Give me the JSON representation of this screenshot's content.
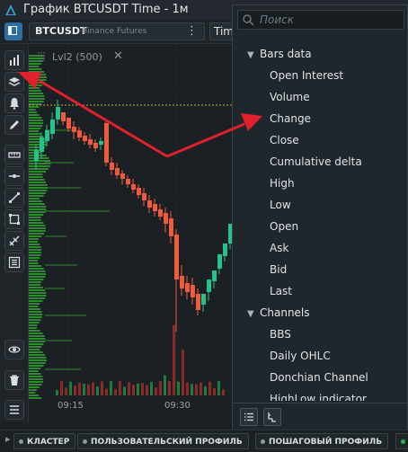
{
  "window": {
    "title": "График BTCUSDT Time - 1м"
  },
  "toolbar": {
    "symbol": "BTCUSDT",
    "exchange": "Binance Futures",
    "timeframe": "Time"
  },
  "chart": {
    "indicator_label": "Lvl2 (500)",
    "time_labels": [
      "09:15",
      "09:30"
    ]
  },
  "dropdown": {
    "search_placeholder": "Поиск",
    "groups": [
      {
        "label": "Bars data",
        "items": [
          "Open Interest",
          "Volume",
          "Change",
          "Close",
          "Cumulative delta",
          "High",
          "Low",
          "Open",
          "Ask",
          "Bid",
          "Last"
        ]
      },
      {
        "label": "Channels",
        "items": [
          "BBS",
          "Daily OHLC",
          "Donchian Channel",
          "HighLow indicator"
        ]
      }
    ]
  },
  "bottom_tabs": [
    "КЛАСТЕР",
    "ПОЛЬЗОВАТЕЛЬСКИЙ ПРОФИЛЬ",
    "ПОШАГОВЫЙ ПРОФИЛЬ"
  ],
  "colors": {
    "up": "#26c28a",
    "down": "#ef5a3c",
    "accent": "#2b6fa5",
    "annotation_arrow": "#e0202a"
  }
}
